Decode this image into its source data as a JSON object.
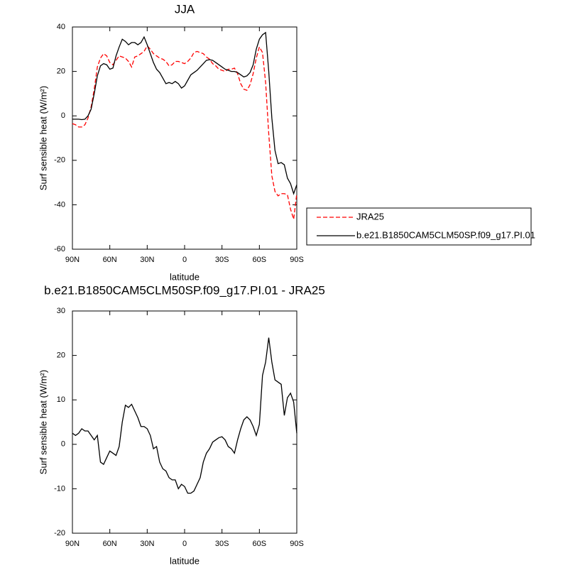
{
  "chart_data": [
    {
      "type": "line",
      "title": "JJA",
      "x_label": "latitude",
      "y_label": "Surf sensible heat (W/m²)",
      "xlim": [
        90,
        -90
      ],
      "ylim": [
        -60,
        40
      ],
      "xticks": [
        {
          "value": 90,
          "label": "90N"
        },
        {
          "value": 60,
          "label": "60N"
        },
        {
          "value": 30,
          "label": "30N"
        },
        0,
        {
          "value": -30,
          "label": "30S"
        },
        {
          "value": -60,
          "label": "60S"
        },
        {
          "value": -90,
          "label": "90S"
        }
      ],
      "yticks": [
        -60,
        -40,
        -20,
        0,
        20,
        40
      ],
      "legend": "right",
      "x": [
        90,
        87.5,
        85,
        82.5,
        80,
        77.5,
        75,
        72.5,
        70,
        67.5,
        65,
        62.5,
        60,
        57.5,
        55,
        52.5,
        50,
        47.5,
        45,
        42.5,
        40,
        37.5,
        35,
        32.5,
        30,
        27.5,
        25,
        22.5,
        20,
        17.5,
        15,
        12.5,
        10,
        7.5,
        5,
        2.5,
        0,
        -2.5,
        -5,
        -7.5,
        -10,
        -12.5,
        -15,
        -17.5,
        -20,
        -22.5,
        -25,
        -27.5,
        -30,
        -32.5,
        -35,
        -37.5,
        -40,
        -42.5,
        -45,
        -47.5,
        -50,
        -52.5,
        -55,
        -57.5,
        -60,
        -62.5,
        -65,
        -67.5,
        -70,
        -72.5,
        -75,
        -77.5,
        -80,
        -82.5,
        -85,
        -87.5,
        -90
      ],
      "series": [
        {
          "name": "JRA25",
          "color": "#ff0000",
          "style": "dashed",
          "values": [
            -3.5,
            -4,
            -5,
            -5,
            -4,
            -1,
            4,
            12,
            22,
            26,
            28,
            27,
            24,
            23,
            25,
            27,
            26.5,
            26,
            24.5,
            22,
            26.5,
            27,
            28,
            29,
            31.5,
            30,
            28,
            27,
            26,
            25.5,
            24.5,
            22.5,
            23,
            24.5,
            24.5,
            24,
            23.5,
            24.5,
            26,
            28.5,
            29,
            28.5,
            28,
            26.5,
            25.5,
            23.5,
            22.5,
            21,
            20.5,
            20,
            21,
            21,
            21.5,
            19,
            14.5,
            12,
            11.5,
            14,
            19,
            26,
            31,
            28.5,
            15,
            -8,
            -27,
            -34,
            -36,
            -35,
            -35,
            -35.5,
            -42,
            -46.5,
            -35
          ]
        },
        {
          "name": "b.e21.B1850CAM5CLM50SP.f09_g17.PI.01",
          "color": "#000000",
          "style": "solid",
          "values": [
            -1.5,
            -1.5,
            -1.5,
            -1.7,
            -1.5,
            0,
            3,
            10,
            18,
            22.5,
            23.5,
            23,
            21,
            21.5,
            27,
            31,
            34.5,
            33.5,
            32,
            33,
            33,
            32,
            33,
            35.5,
            32,
            28,
            24,
            21,
            19.5,
            17,
            14.5,
            15,
            14.5,
            15.5,
            14.5,
            12.5,
            13.5,
            16,
            18.5,
            19.5,
            20.5,
            22,
            23.5,
            25,
            25.3,
            25,
            24,
            23,
            22,
            21,
            20.5,
            20,
            20,
            19.5,
            18.5,
            17.5,
            18,
            19.5,
            23,
            30,
            34.5,
            36.5,
            37.5,
            20,
            -1,
            -15.5,
            -21.5,
            -21,
            -22,
            -28,
            -30.5,
            -35,
            -31
          ]
        }
      ]
    },
    {
      "type": "line",
      "title": "b.e21.B1850CAM5CLM50SP.f09_g17.PI.01 - JRA25",
      "x_label": "latitude",
      "y_label": "Surf sensible heat (W/m²)",
      "xlim": [
        90,
        -90
      ],
      "ylim": [
        -20,
        30
      ],
      "xticks": [
        {
          "value": 90,
          "label": "90N"
        },
        {
          "value": 60,
          "label": "60N"
        },
        {
          "value": 30,
          "label": "30N"
        },
        0,
        {
          "value": -30,
          "label": "30S"
        },
        {
          "value": -60,
          "label": "60S"
        },
        {
          "value": -90,
          "label": "90S"
        }
      ],
      "yticks": [
        -20,
        -10,
        0,
        10,
        20,
        30
      ],
      "x": [
        90,
        87.5,
        85,
        82.5,
        80,
        77.5,
        75,
        72.5,
        70,
        67.5,
        65,
        62.5,
        60,
        57.5,
        55,
        52.5,
        50,
        47.5,
        45,
        42.5,
        40,
        37.5,
        35,
        32.5,
        30,
        27.5,
        25,
        22.5,
        20,
        17.5,
        15,
        12.5,
        10,
        7.5,
        5,
        2.5,
        0,
        -2.5,
        -5,
        -7.5,
        -10,
        -12.5,
        -15,
        -17.5,
        -20,
        -22.5,
        -25,
        -27.5,
        -30,
        -32.5,
        -35,
        -37.5,
        -40,
        -42.5,
        -45,
        -47.5,
        -50,
        -52.5,
        -55,
        -57.5,
        -60,
        -62.5,
        -65,
        -67.5,
        -70,
        -72.5,
        -75,
        -77.5,
        -80,
        -82.5,
        -85,
        -87.5,
        -90
      ],
      "color": "#000000",
      "values": [
        2.5,
        2,
        2.5,
        3.5,
        3,
        3,
        2,
        1,
        2,
        -4,
        -4.5,
        -3,
        -1.5,
        -2,
        -2.5,
        -0.5,
        5,
        8.8,
        8.3,
        9,
        7.5,
        6,
        4,
        4,
        3.5,
        2,
        -1,
        -0.5,
        -4,
        -5.5,
        -6,
        -7.5,
        -8,
        -8,
        -10,
        -9,
        -9.5,
        -11,
        -11,
        -10.5,
        -9,
        -7.5,
        -4,
        -2,
        -1,
        0.5,
        1,
        1.5,
        1.7,
        1,
        -0.5,
        -1,
        -2,
        1,
        3.5,
        5.5,
        6.2,
        5.5,
        4,
        2,
        4.5,
        15.5,
        18.5,
        24,
        18.5,
        14.5,
        14,
        13.5,
        6.5,
        10.5,
        11.5,
        9.5,
        2.5
      ]
    }
  ]
}
